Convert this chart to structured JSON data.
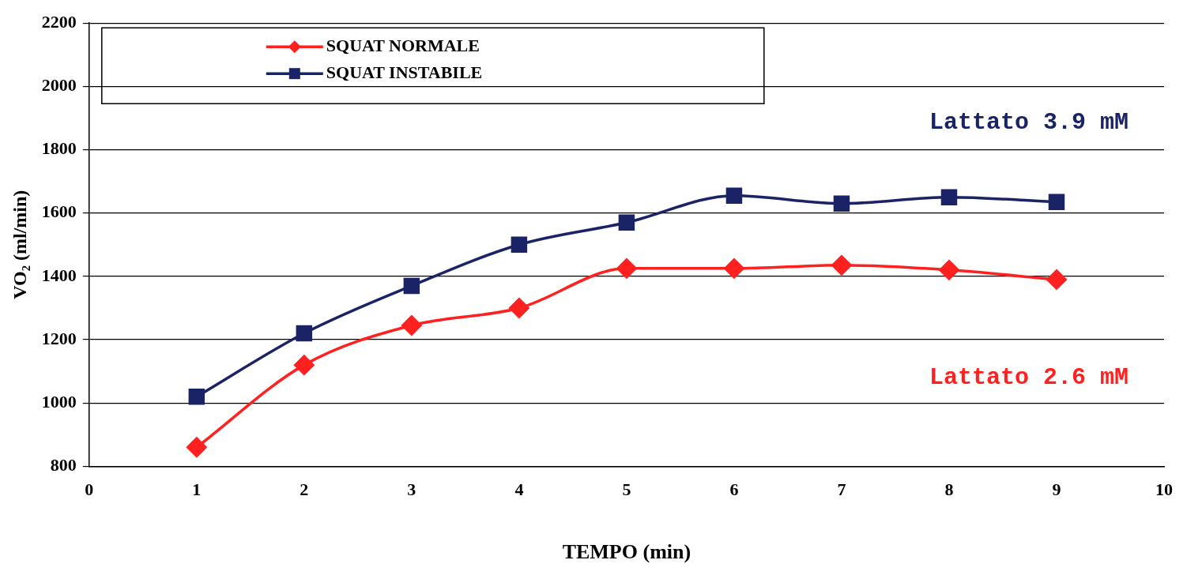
{
  "chart_data": {
    "type": "line",
    "xlabel": "TEMPO (min)",
    "ylabel": "VO₂ (ml/min)",
    "x": [
      1,
      2,
      3,
      4,
      5,
      6,
      7,
      8,
      9
    ],
    "series": [
      {
        "name": "SQUAT NORMALE",
        "color": "#ff2020",
        "marker": "diamond",
        "values": [
          860,
          1120,
          1245,
          1300,
          1425,
          1425,
          1435,
          1420,
          1390
        ]
      },
      {
        "name": "SQUAT INSTABILE",
        "color": "#1a2366",
        "marker": "square",
        "values": [
          1020,
          1220,
          1370,
          1500,
          1570,
          1655,
          1630,
          1650,
          1635
        ]
      }
    ],
    "xlim": [
      0,
      10
    ],
    "xticks": [
      0,
      1,
      2,
      3,
      4,
      5,
      6,
      7,
      8,
      9,
      10
    ],
    "ylim": [
      800,
      2200
    ],
    "yticks": [
      800,
      1000,
      1200,
      1400,
      1600,
      1800,
      2000,
      2200
    ],
    "grid": "y",
    "legend": "top left",
    "line_style": "solid",
    "annotations": [
      "Lattato 2.6 mM",
      "Lattato 3.9 mM"
    ]
  }
}
